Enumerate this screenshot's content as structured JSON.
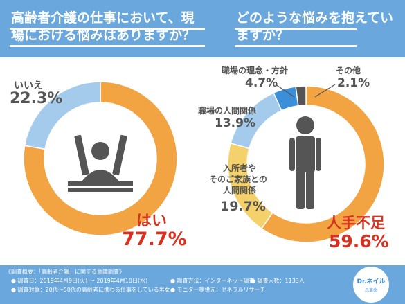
{
  "header": {
    "question_left": "高齢者介護の仕事において、現場における悩みはありますか？",
    "question_right": "どのような悩みを抱えていますか？"
  },
  "chart_data": [
    {
      "type": "pie",
      "categories": [
        "はい",
        "いいえ"
      ],
      "values": [
        77.7,
        22.3
      ],
      "colors": [
        "#f2a443",
        "#a4cbeb"
      ]
    },
    {
      "type": "pie",
      "categories": [
        "人手不足",
        "入所者やそのご家族との人間関係",
        "職場の人間関係",
        "職場の理念・方針",
        "その他"
      ],
      "values": [
        59.6,
        19.7,
        13.9,
        4.7,
        2.1
      ],
      "colors": [
        "#f2a443",
        "#f5d16b",
        "#a4cbeb",
        "#3a8fd8",
        "#555555"
      ]
    }
  ],
  "labels": {
    "left_yes_label": "はい",
    "left_yes_value": "77.7%",
    "left_no_label": "いいえ",
    "left_no_value": "22.3%",
    "right_shortage_label": "人手不足",
    "right_shortage_value": "59.6%",
    "right_family_label_1": "入所者や",
    "right_family_label_2": "そのご家族との",
    "right_family_label_3": "人間関係",
    "right_family_value": "19.7%",
    "right_workplace_label": "職場の人間関係",
    "right_workplace_value": "13.9%",
    "right_policy_label": "職場の理念・方針",
    "right_policy_value": "4.7%",
    "right_other_label": "その他",
    "right_other_value": "2.1%"
  },
  "footer": {
    "title": "《調査概要：「高齢者介護」に関する意識調査》",
    "date": "● 調査日：2019年4月9日(火) 〜 2019年4月10日(水)",
    "method": "● 調査方法：インターネット調査",
    "count": "● 調査人数：1133人",
    "target": "● 調査対象：20代〜50代の高齢者に携わる仕事をしている男女",
    "provider": "● モニター提供元：ゼネラルリサーチ",
    "logo_text": "Dr.ネイル",
    "logo_sub": "爪革命"
  },
  "colors": {
    "header_bg": "#6aa7dc",
    "orange": "#f2a443",
    "light_blue": "#a4cbeb",
    "yellow": "#f5d16b",
    "blue": "#3a8fd8",
    "dark_grey": "#555555",
    "red": "#d9311f"
  }
}
